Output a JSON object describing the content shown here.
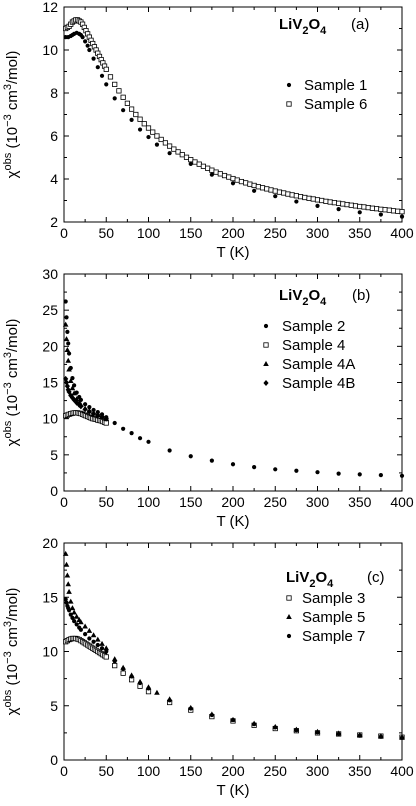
{
  "chart_data": [
    {
      "type": "scatter",
      "panel_label": "(a)",
      "compound": {
        "base": "LiV",
        "sub1": "2",
        "mid": "O",
        "sub2": "4"
      },
      "xlabel": "T (K)",
      "ylabel": {
        "chi": "χ",
        "sup": "obs",
        "rest": " (10",
        "exp": "−3",
        "units": " cm",
        "exp2": "3",
        "tail": "/mol)"
      },
      "xlim": [
        0,
        400
      ],
      "ylim": [
        2,
        12
      ],
      "xticks": [
        0,
        50,
        100,
        150,
        200,
        250,
        300,
        350,
        400
      ],
      "yticks": [
        2,
        4,
        6,
        8,
        10,
        12
      ],
      "legend_position": "top-right",
      "series": [
        {
          "name": "Sample 1",
          "marker": "filled-circle",
          "x": [
            2,
            5,
            8,
            10,
            12,
            15,
            18,
            20,
            22,
            25,
            28,
            30,
            35,
            40,
            45,
            50,
            60,
            70,
            80,
            90,
            100,
            110,
            125,
            150,
            175,
            200,
            225,
            250,
            275,
            300,
            325,
            350,
            375,
            400
          ],
          "y": [
            10.6,
            10.6,
            10.65,
            10.7,
            10.75,
            10.8,
            10.75,
            10.7,
            10.6,
            10.4,
            10.2,
            10.0,
            9.6,
            9.2,
            8.8,
            8.4,
            7.75,
            7.2,
            6.75,
            6.3,
            5.95,
            5.6,
            5.2,
            4.7,
            4.2,
            3.8,
            3.45,
            3.2,
            2.95,
            2.75,
            2.6,
            2.45,
            2.35,
            2.25
          ]
        },
        {
          "name": "Sample 6",
          "marker": "open-square",
          "x": [
            2,
            4,
            6,
            8,
            10,
            12,
            14,
            16,
            18,
            20,
            22,
            24,
            26,
            28,
            30,
            32,
            34,
            36,
            38,
            40,
            42,
            44,
            46,
            48,
            50,
            55,
            60,
            65,
            70,
            75,
            80,
            85,
            90,
            95,
            100,
            105,
            110,
            115,
            120,
            125,
            130,
            135,
            140,
            145,
            150,
            155,
            160,
            165,
            170,
            175,
            180,
            185,
            190,
            195,
            200,
            205,
            210,
            215,
            220,
            225,
            230,
            235,
            240,
            245,
            250,
            255,
            260,
            265,
            270,
            275,
            280,
            285,
            290,
            295,
            300,
            305,
            310,
            315,
            320,
            325,
            330,
            335,
            340,
            345,
            350,
            355,
            360,
            365,
            370,
            375,
            380,
            385,
            390,
            395,
            400
          ],
          "y": [
            11.0,
            11.05,
            11.1,
            11.2,
            11.3,
            11.35,
            11.4,
            11.4,
            11.35,
            11.3,
            11.2,
            11.05,
            10.9,
            10.75,
            10.6,
            10.45,
            10.3,
            10.15,
            10.0,
            9.85,
            9.7,
            9.55,
            9.4,
            9.25,
            9.1,
            8.75,
            8.4,
            8.1,
            7.8,
            7.52,
            7.25,
            7.0,
            6.78,
            6.57,
            6.37,
            6.18,
            6.0,
            5.84,
            5.68,
            5.53,
            5.39,
            5.26,
            5.13,
            5.01,
            4.9,
            4.79,
            4.69,
            4.59,
            4.5,
            4.41,
            4.32,
            4.24,
            4.16,
            4.09,
            4.02,
            3.95,
            3.88,
            3.82,
            3.76,
            3.7,
            3.64,
            3.59,
            3.54,
            3.49,
            3.44,
            3.39,
            3.35,
            3.3,
            3.26,
            3.22,
            3.18,
            3.14,
            3.1,
            3.07,
            3.03,
            3.0,
            2.96,
            2.93,
            2.9,
            2.87,
            2.84,
            2.81,
            2.78,
            2.75,
            2.72,
            2.7,
            2.67,
            2.64,
            2.62,
            2.59,
            2.57,
            2.55,
            2.52,
            2.5,
            2.48
          ]
        }
      ]
    },
    {
      "type": "scatter",
      "panel_label": "(b)",
      "compound": {
        "base": "LiV",
        "sub1": "2",
        "mid": "O",
        "sub2": "4"
      },
      "xlabel": "T (K)",
      "ylabel": {
        "chi": "χ",
        "sup": "obs",
        "rest": " (10",
        "exp": "−3",
        "units": " cm",
        "exp2": "3",
        "tail": "/mol)"
      },
      "xlim": [
        0,
        400
      ],
      "ylim": [
        0,
        30
      ],
      "xticks": [
        0,
        50,
        100,
        150,
        200,
        250,
        300,
        350,
        400
      ],
      "yticks": [
        0,
        5,
        10,
        15,
        20,
        25,
        30
      ],
      "legend_position": "center-right",
      "series": [
        {
          "name": "Sample 2",
          "marker": "filled-circle",
          "x": [
            2,
            3,
            4,
            5,
            6,
            8,
            10,
            12,
            15,
            18,
            20,
            25,
            30,
            35,
            40,
            45,
            50,
            60,
            70,
            80,
            90,
            100,
            125,
            150,
            175,
            200,
            225,
            250,
            275,
            300,
            325,
            350,
            375,
            400
          ],
          "y": [
            26.2,
            24.0,
            22.0,
            20.4,
            19.0,
            17.0,
            15.6,
            14.6,
            13.6,
            13.0,
            12.6,
            12.0,
            11.6,
            11.2,
            10.9,
            10.6,
            10.2,
            9.4,
            8.6,
            8.0,
            7.3,
            6.8,
            5.6,
            4.8,
            4.2,
            3.7,
            3.3,
            3.0,
            2.8,
            2.6,
            2.4,
            2.3,
            2.2,
            2.1
          ]
        },
        {
          "name": "Sample 4",
          "marker": "open-square",
          "x": [
            2,
            4,
            6,
            8,
            10,
            12,
            14,
            16,
            18,
            20,
            22,
            24,
            26,
            28,
            30,
            32,
            34,
            36,
            38,
            40,
            42,
            44,
            46,
            48,
            50
          ],
          "y": [
            10.4,
            10.5,
            10.6,
            10.7,
            10.75,
            10.8,
            10.8,
            10.8,
            10.75,
            10.7,
            10.6,
            10.5,
            10.4,
            10.3,
            10.2,
            10.1,
            10.0,
            9.95,
            9.9,
            9.8,
            9.75,
            9.7,
            9.6,
            9.5,
            9.4
          ]
        },
        {
          "name": "Sample 4A",
          "marker": "filled-triangle",
          "x": [
            2,
            3,
            4,
            5,
            6,
            8,
            10,
            12,
            15,
            18,
            20,
            25,
            30,
            35,
            40,
            45,
            50
          ],
          "y": [
            23.0,
            21.0,
            19.5,
            18.0,
            16.8,
            15.2,
            14.2,
            13.5,
            12.7,
            12.2,
            11.9,
            11.4,
            11.0,
            10.7,
            10.5,
            10.3,
            10.0
          ]
        },
        {
          "name": "Sample 4B",
          "marker": "filled-diamond",
          "x": [
            2,
            3,
            4,
            5,
            6,
            8,
            10,
            12,
            15,
            18,
            20,
            25,
            30,
            35,
            40,
            45,
            50
          ],
          "y": [
            15.5,
            15.0,
            14.5,
            14.0,
            13.7,
            13.2,
            12.9,
            12.6,
            12.2,
            11.9,
            11.7,
            11.3,
            11.0,
            10.7,
            10.5,
            10.3,
            10.0
          ]
        }
      ]
    },
    {
      "type": "scatter",
      "panel_label": "(c)",
      "compound": {
        "base": "LiV",
        "sub1": "2",
        "mid": "O",
        "sub2": "4"
      },
      "xlabel": "T (K)",
      "ylabel": {
        "chi": "χ",
        "sup": "obs",
        "rest": " (10",
        "exp": "−3",
        "units": " cm",
        "exp2": "3",
        "tail": "/mol)"
      },
      "xlim": [
        0,
        400
      ],
      "ylim": [
        0,
        20
      ],
      "xticks": [
        0,
        50,
        100,
        150,
        200,
        250,
        300,
        350,
        400
      ],
      "yticks": [
        0,
        5,
        10,
        15,
        20
      ],
      "legend_position": "top-right",
      "series": [
        {
          "name": "Sample 3",
          "marker": "open-square",
          "x": [
            2,
            4,
            6,
            8,
            10,
            12,
            14,
            16,
            18,
            20,
            22,
            24,
            26,
            28,
            30,
            32,
            34,
            36,
            38,
            40,
            42,
            44,
            46,
            48,
            50,
            60,
            70,
            80,
            90,
            100,
            125,
            150,
            175,
            200,
            225,
            250,
            275,
            300,
            325,
            350,
            375,
            400
          ],
          "y": [
            10.9,
            11.0,
            11.1,
            11.15,
            11.2,
            11.2,
            11.2,
            11.15,
            11.1,
            11.0,
            10.9,
            10.8,
            10.7,
            10.6,
            10.5,
            10.4,
            10.3,
            10.2,
            10.1,
            10.0,
            9.9,
            9.8,
            9.7,
            9.6,
            9.5,
            8.7,
            8.0,
            7.4,
            6.8,
            6.3,
            5.3,
            4.6,
            4.0,
            3.6,
            3.2,
            2.9,
            2.7,
            2.5,
            2.4,
            2.3,
            2.2,
            2.1
          ]
        },
        {
          "name": "Sample 5",
          "marker": "filled-triangle",
          "x": [
            2,
            3,
            4,
            5,
            6,
            8,
            10,
            12,
            15,
            18,
            20,
            25,
            30,
            35,
            40,
            45,
            50,
            60,
            70,
            80,
            90,
            100,
            110,
            125,
            150,
            175,
            200,
            225,
            250,
            275,
            300,
            325,
            350,
            375,
            400
          ],
          "y": [
            19.0,
            18.0,
            17.0,
            16.2,
            15.5,
            14.6,
            14.0,
            13.6,
            13.2,
            12.9,
            12.7,
            12.3,
            11.9,
            11.5,
            11.1,
            10.7,
            10.3,
            9.3,
            8.5,
            7.8,
            7.2,
            6.7,
            6.2,
            5.6,
            4.8,
            4.2,
            3.7,
            3.35,
            3.05,
            2.8,
            2.6,
            2.45,
            2.3,
            2.2,
            2.1
          ]
        },
        {
          "name": "Sample 7",
          "marker": "filled-circle",
          "x": [
            2,
            3,
            4,
            5,
            6,
            8,
            10,
            12,
            15,
            18,
            20,
            25,
            30,
            35,
            40,
            45,
            50,
            60,
            70,
            80,
            90,
            100,
            125,
            150,
            175,
            200,
            225,
            250,
            275,
            300,
            325,
            350,
            375,
            400
          ],
          "y": [
            14.8,
            14.5,
            14.2,
            14.0,
            13.8,
            13.4,
            13.1,
            12.8,
            12.5,
            12.2,
            12.0,
            11.6,
            11.2,
            10.9,
            10.6,
            10.3,
            10.0,
            9.1,
            8.4,
            7.7,
            7.1,
            6.6,
            5.5,
            4.75,
            4.15,
            3.7,
            3.3,
            3.0,
            2.75,
            2.55,
            2.4,
            2.25,
            2.15,
            2.05
          ]
        }
      ]
    }
  ]
}
